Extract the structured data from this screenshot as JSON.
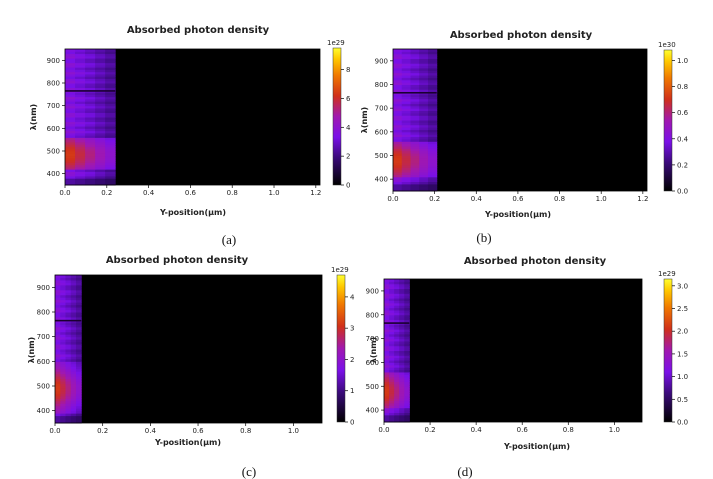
{
  "chart_data": [
    {
      "type": "heatmap",
      "caption": "(a)",
      "title": "Absorbed photon density",
      "xlabel": "Y-position(μm)",
      "ylabel": "λ(nm)",
      "xticks": [
        "0.0",
        "0.2",
        "0.4",
        "0.6",
        "0.8",
        "1.0",
        "1.2"
      ],
      "yticks": [
        "400",
        "500",
        "600",
        "700",
        "800",
        "900"
      ],
      "xlim": [
        0,
        1.22
      ],
      "ylim": [
        350,
        950
      ],
      "colormap": "plasma-like",
      "colorbar": {
        "exponent": "1e29",
        "ticks": [
          "0",
          "2",
          "4",
          "6",
          "8"
        ],
        "min": 0,
        "max": 9.5
      },
      "active_x_range": [
        0,
        0.24
      ],
      "dark_line_wavelength": 765,
      "bright_band_wavelengths": [
        450,
        520
      ]
    },
    {
      "type": "heatmap",
      "caption": "(b)",
      "title": "Absorbed photon density",
      "xlabel": "Y-position(μm)",
      "ylabel": "λ(nm)",
      "xticks": [
        "0.0",
        "0.2",
        "0.4",
        "0.6",
        "0.8",
        "1.0",
        "1.2"
      ],
      "yticks": [
        "400",
        "500",
        "600",
        "700",
        "800",
        "900"
      ],
      "xlim": [
        0,
        1.22
      ],
      "ylim": [
        350,
        950
      ],
      "colormap": "plasma-like",
      "colorbar": {
        "exponent": "1e30",
        "ticks": [
          "0.0",
          "0.2",
          "0.4",
          "0.6",
          "0.8",
          "1.0"
        ],
        "min": 0,
        "max": 1.08
      },
      "active_x_range": [
        0,
        0.21
      ],
      "dark_line_wavelength": 765,
      "bright_band_wavelengths": [
        440,
        520
      ]
    },
    {
      "type": "heatmap",
      "caption": "(c)",
      "title": "Absorbed photon density",
      "xlabel": "Y-position(μm)",
      "ylabel": "λ(nm)",
      "xticks": [
        "0.0",
        "0.2",
        "0.4",
        "0.6",
        "0.8",
        "1.0"
      ],
      "yticks": [
        "400",
        "500",
        "600",
        "700",
        "800",
        "900"
      ],
      "xlim": [
        0,
        1.12
      ],
      "ylim": [
        350,
        950
      ],
      "colormap": "plasma-like",
      "colorbar": {
        "exponent": "1e29",
        "ticks": [
          "0",
          "1",
          "2",
          "3",
          "4"
        ],
        "min": 0,
        "max": 4.7
      },
      "active_x_range": [
        0,
        0.11
      ],
      "dark_line_wavelength": 765,
      "bright_band_wavelengths": [
        420,
        560
      ]
    },
    {
      "type": "heatmap",
      "caption": "(d)",
      "title": "Absorbed photon density",
      "xlabel": "Y-position(μm)",
      "ylabel": "λ(nm)",
      "xticks": [
        "0.0",
        "0.2",
        "0.4",
        "0.6",
        "0.8",
        "1.0"
      ],
      "yticks": [
        "400",
        "500",
        "600",
        "700",
        "800",
        "900"
      ],
      "xlim": [
        0,
        1.12
      ],
      "ylim": [
        350,
        950
      ],
      "colormap": "plasma-like",
      "colorbar": {
        "exponent": "1e29",
        "ticks": [
          "0.0",
          "0.5",
          "1.0",
          "1.5",
          "2.0",
          "2.5",
          "3.0"
        ],
        "min": 0,
        "max": 3.15
      },
      "active_x_range": [
        0,
        0.11
      ],
      "dark_line_wavelength": 765,
      "bright_band_wavelengths": [
        440,
        520
      ]
    }
  ]
}
